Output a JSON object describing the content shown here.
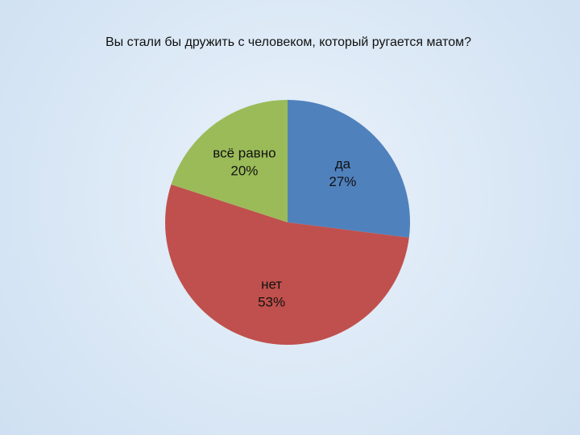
{
  "chart_data": {
    "type": "pie",
    "title": "Вы стали бы дружить с человеком, который ругается матом?",
    "categories": [
      "да",
      "нет",
      "всё равно"
    ],
    "values": [
      27,
      53,
      20
    ],
    "value_labels": [
      "27%",
      "53%",
      "20%"
    ],
    "colors": [
      "#4f81bd",
      "#c0504d",
      "#9bbb59"
    ]
  }
}
